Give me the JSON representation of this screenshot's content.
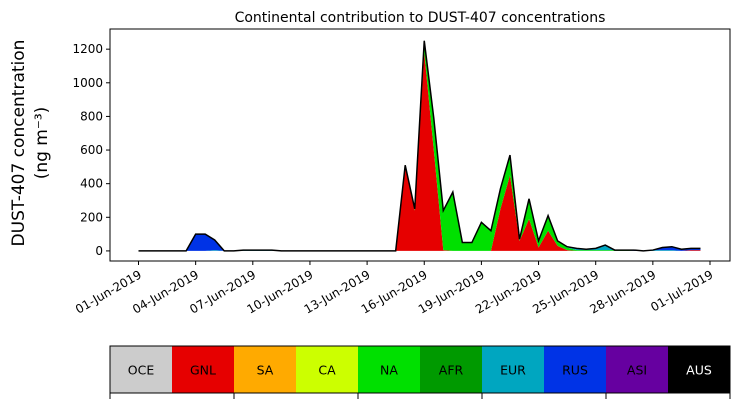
{
  "chart_data": {
    "type": "area",
    "title": "Continental contribution to DUST-407 concentrations",
    "ylabel_line1": "DUST-407 concentration",
    "ylabel_line2": "(ng m⁻³)",
    "xlabel": "",
    "ylim": [
      -60,
      1320
    ],
    "yticks": [
      0,
      200,
      400,
      600,
      800,
      1000,
      1200
    ],
    "xticks": [
      "01-Jun-2019",
      "04-Jun-2019",
      "07-Jun-2019",
      "10-Jun-2019",
      "13-Jun-2019",
      "16-Jun-2019",
      "19-Jun-2019",
      "22-Jun-2019",
      "25-Jun-2019",
      "28-Jun-2019",
      "01-Jul-2019"
    ],
    "x": [
      "01-Jun-2019 00:00",
      "01-Jun-2019 12:00",
      "02-Jun-2019 00:00",
      "02-Jun-2019 12:00",
      "03-Jun-2019 00:00",
      "03-Jun-2019 12:00",
      "04-Jun-2019 00:00",
      "04-Jun-2019 12:00",
      "05-Jun-2019 00:00",
      "05-Jun-2019 12:00",
      "06-Jun-2019 00:00",
      "06-Jun-2019 12:00",
      "07-Jun-2019 00:00",
      "07-Jun-2019 12:00",
      "08-Jun-2019 00:00",
      "08-Jun-2019 12:00",
      "09-Jun-2019 00:00",
      "09-Jun-2019 12:00",
      "10-Jun-2019 00:00",
      "10-Jun-2019 12:00",
      "11-Jun-2019 00:00",
      "11-Jun-2019 12:00",
      "12-Jun-2019 00:00",
      "12-Jun-2019 12:00",
      "13-Jun-2019 00:00",
      "13-Jun-2019 12:00",
      "14-Jun-2019 00:00",
      "14-Jun-2019 12:00",
      "15-Jun-2019 00:00",
      "15-Jun-2019 12:00",
      "16-Jun-2019 00:00",
      "16-Jun-2019 12:00",
      "17-Jun-2019 00:00",
      "17-Jun-2019 12:00",
      "18-Jun-2019 00:00",
      "18-Jun-2019 12:00",
      "19-Jun-2019 00:00",
      "19-Jun-2019 12:00",
      "20-Jun-2019 00:00",
      "20-Jun-2019 12:00",
      "21-Jun-2019 00:00",
      "21-Jun-2019 12:00",
      "22-Jun-2019 00:00",
      "22-Jun-2019 12:00",
      "23-Jun-2019 00:00",
      "23-Jun-2019 12:00",
      "24-Jun-2019 00:00",
      "24-Jun-2019 12:00",
      "25-Jun-2019 00:00",
      "25-Jun-2019 12:00",
      "26-Jun-2019 00:00",
      "26-Jun-2019 12:00",
      "27-Jun-2019 00:00",
      "27-Jun-2019 12:00",
      "28-Jun-2019 00:00",
      "28-Jun-2019 12:00",
      "29-Jun-2019 00:00",
      "29-Jun-2019 12:00",
      "30-Jun-2019 00:00",
      "30-Jun-2019 12:00"
    ],
    "series": [
      {
        "name": "OCE",
        "color": "#cccccc",
        "values": [
          0,
          0,
          0,
          0,
          0,
          0,
          0,
          0,
          0,
          0,
          0,
          0,
          0,
          0,
          0,
          0,
          0,
          0,
          0,
          0,
          0,
          0,
          0,
          0,
          0,
          0,
          0,
          0,
          0,
          0,
          0,
          0,
          0,
          0,
          0,
          0,
          0,
          0,
          0,
          0,
          0,
          0,
          0,
          0,
          0,
          0,
          0,
          0,
          0,
          0,
          0,
          0,
          0,
          0,
          0,
          0,
          0,
          0,
          0,
          0
        ]
      },
      {
        "name": "GNL",
        "color": "#e60000",
        "values": [
          0,
          0,
          0,
          0,
          0,
          0,
          0,
          0,
          0,
          0,
          0,
          0,
          0,
          0,
          0,
          0,
          0,
          0,
          0,
          0,
          0,
          0,
          0,
          0,
          0,
          0,
          0,
          0,
          500,
          240,
          1180,
          600,
          5,
          0,
          0,
          0,
          0,
          0,
          250,
          450,
          60,
          190,
          20,
          120,
          30,
          5,
          0,
          0,
          0,
          0,
          0,
          0,
          0,
          0,
          0,
          0,
          0,
          0,
          5,
          5
        ]
      },
      {
        "name": "SA",
        "color": "#ffaa00",
        "values": [
          0,
          0,
          0,
          0,
          0,
          0,
          0,
          0,
          0,
          0,
          0,
          0,
          0,
          0,
          0,
          0,
          0,
          0,
          0,
          0,
          0,
          0,
          0,
          0,
          0,
          0,
          0,
          0,
          0,
          0,
          0,
          0,
          0,
          0,
          0,
          0,
          0,
          0,
          0,
          0,
          0,
          0,
          0,
          0,
          0,
          0,
          0,
          0,
          0,
          0,
          0,
          0,
          0,
          0,
          0,
          0,
          0,
          0,
          0,
          0
        ]
      },
      {
        "name": "CA",
        "color": "#ccff00",
        "values": [
          0,
          0,
          0,
          0,
          0,
          0,
          0,
          0,
          0,
          0,
          0,
          0,
          0,
          0,
          0,
          0,
          0,
          0,
          0,
          0,
          0,
          0,
          0,
          0,
          0,
          0,
          0,
          0,
          0,
          0,
          0,
          0,
          0,
          0,
          0,
          0,
          0,
          0,
          0,
          0,
          0,
          0,
          0,
          0,
          0,
          0,
          0,
          0,
          0,
          0,
          0,
          0,
          0,
          0,
          0,
          0,
          0,
          0,
          0,
          0
        ]
      },
      {
        "name": "NA",
        "color": "#00e000",
        "values": [
          0,
          0,
          0,
          0,
          0,
          0,
          0,
          0,
          0,
          0,
          0,
          0,
          0,
          0,
          0,
          0,
          0,
          0,
          0,
          0,
          0,
          0,
          0,
          0,
          0,
          0,
          0,
          0,
          10,
          10,
          70,
          190,
          235,
          350,
          50,
          50,
          170,
          120,
          120,
          120,
          10,
          120,
          40,
          90,
          30,
          15,
          5,
          5,
          5,
          5,
          5,
          5,
          0,
          0,
          0,
          0,
          0,
          0,
          0,
          0
        ]
      },
      {
        "name": "AFR",
        "color": "#009a00",
        "values": [
          0,
          0,
          0,
          0,
          0,
          0,
          0,
          0,
          0,
          0,
          0,
          0,
          0,
          0,
          0,
          0,
          0,
          0,
          0,
          0,
          0,
          0,
          0,
          0,
          0,
          0,
          0,
          0,
          0,
          0,
          0,
          0,
          0,
          0,
          0,
          0,
          0,
          0,
          0,
          0,
          0,
          0,
          0,
          0,
          0,
          0,
          0,
          0,
          0,
          0,
          0,
          0,
          0,
          0,
          0,
          0,
          0,
          0,
          0,
          0
        ]
      },
      {
        "name": "EUR",
        "color": "#00a6c0",
        "values": [
          0,
          0,
          0,
          0,
          0,
          0,
          0,
          0,
          5,
          0,
          0,
          5,
          5,
          5,
          5,
          0,
          0,
          0,
          0,
          0,
          0,
          0,
          0,
          0,
          0,
          0,
          0,
          0,
          0,
          0,
          0,
          0,
          0,
          0,
          0,
          0,
          0,
          0,
          0,
          0,
          0,
          0,
          0,
          0,
          0,
          5,
          10,
          5,
          10,
          25,
          0,
          0,
          0,
          0,
          5,
          5,
          5,
          0,
          0,
          0
        ]
      },
      {
        "name": "RUS",
        "color": "#0033e6",
        "values": [
          0,
          0,
          0,
          0,
          0,
          0,
          100,
          100,
          60,
          0,
          0,
          0,
          0,
          0,
          0,
          0,
          0,
          0,
          0,
          0,
          0,
          0,
          0,
          0,
          0,
          0,
          0,
          0,
          0,
          0,
          0,
          0,
          0,
          0,
          0,
          0,
          0,
          0,
          0,
          0,
          0,
          0,
          0,
          0,
          0,
          0,
          0,
          0,
          0,
          5,
          0,
          0,
          5,
          0,
          0,
          15,
          20,
          10,
          10,
          10
        ]
      },
      {
        "name": "ASI",
        "color": "#6600a0",
        "values": [
          0,
          0,
          0,
          0,
          0,
          0,
          0,
          0,
          0,
          0,
          0,
          0,
          0,
          0,
          0,
          0,
          0,
          0,
          0,
          0,
          0,
          0,
          0,
          0,
          0,
          0,
          0,
          0,
          0,
          0,
          0,
          0,
          0,
          0,
          0,
          0,
          0,
          0,
          0,
          0,
          0,
          0,
          0,
          0,
          0,
          0,
          0,
          0,
          0,
          0,
          0,
          0,
          0,
          0,
          0,
          0,
          0,
          0,
          0,
          0
        ]
      },
      {
        "name": "AUS",
        "color": "#000000",
        "values": [
          0,
          0,
          0,
          0,
          0,
          0,
          0,
          0,
          0,
          0,
          0,
          0,
          0,
          0,
          0,
          0,
          0,
          0,
          0,
          0,
          0,
          0,
          0,
          0,
          0,
          0,
          0,
          0,
          0,
          0,
          0,
          0,
          0,
          0,
          0,
          0,
          0,
          0,
          0,
          0,
          0,
          0,
          0,
          0,
          0,
          0,
          0,
          0,
          0,
          0,
          0,
          0,
          0,
          0,
          0,
          0,
          0,
          0,
          0,
          0
        ]
      }
    ],
    "grid": false,
    "legend_placement": "bottom"
  }
}
